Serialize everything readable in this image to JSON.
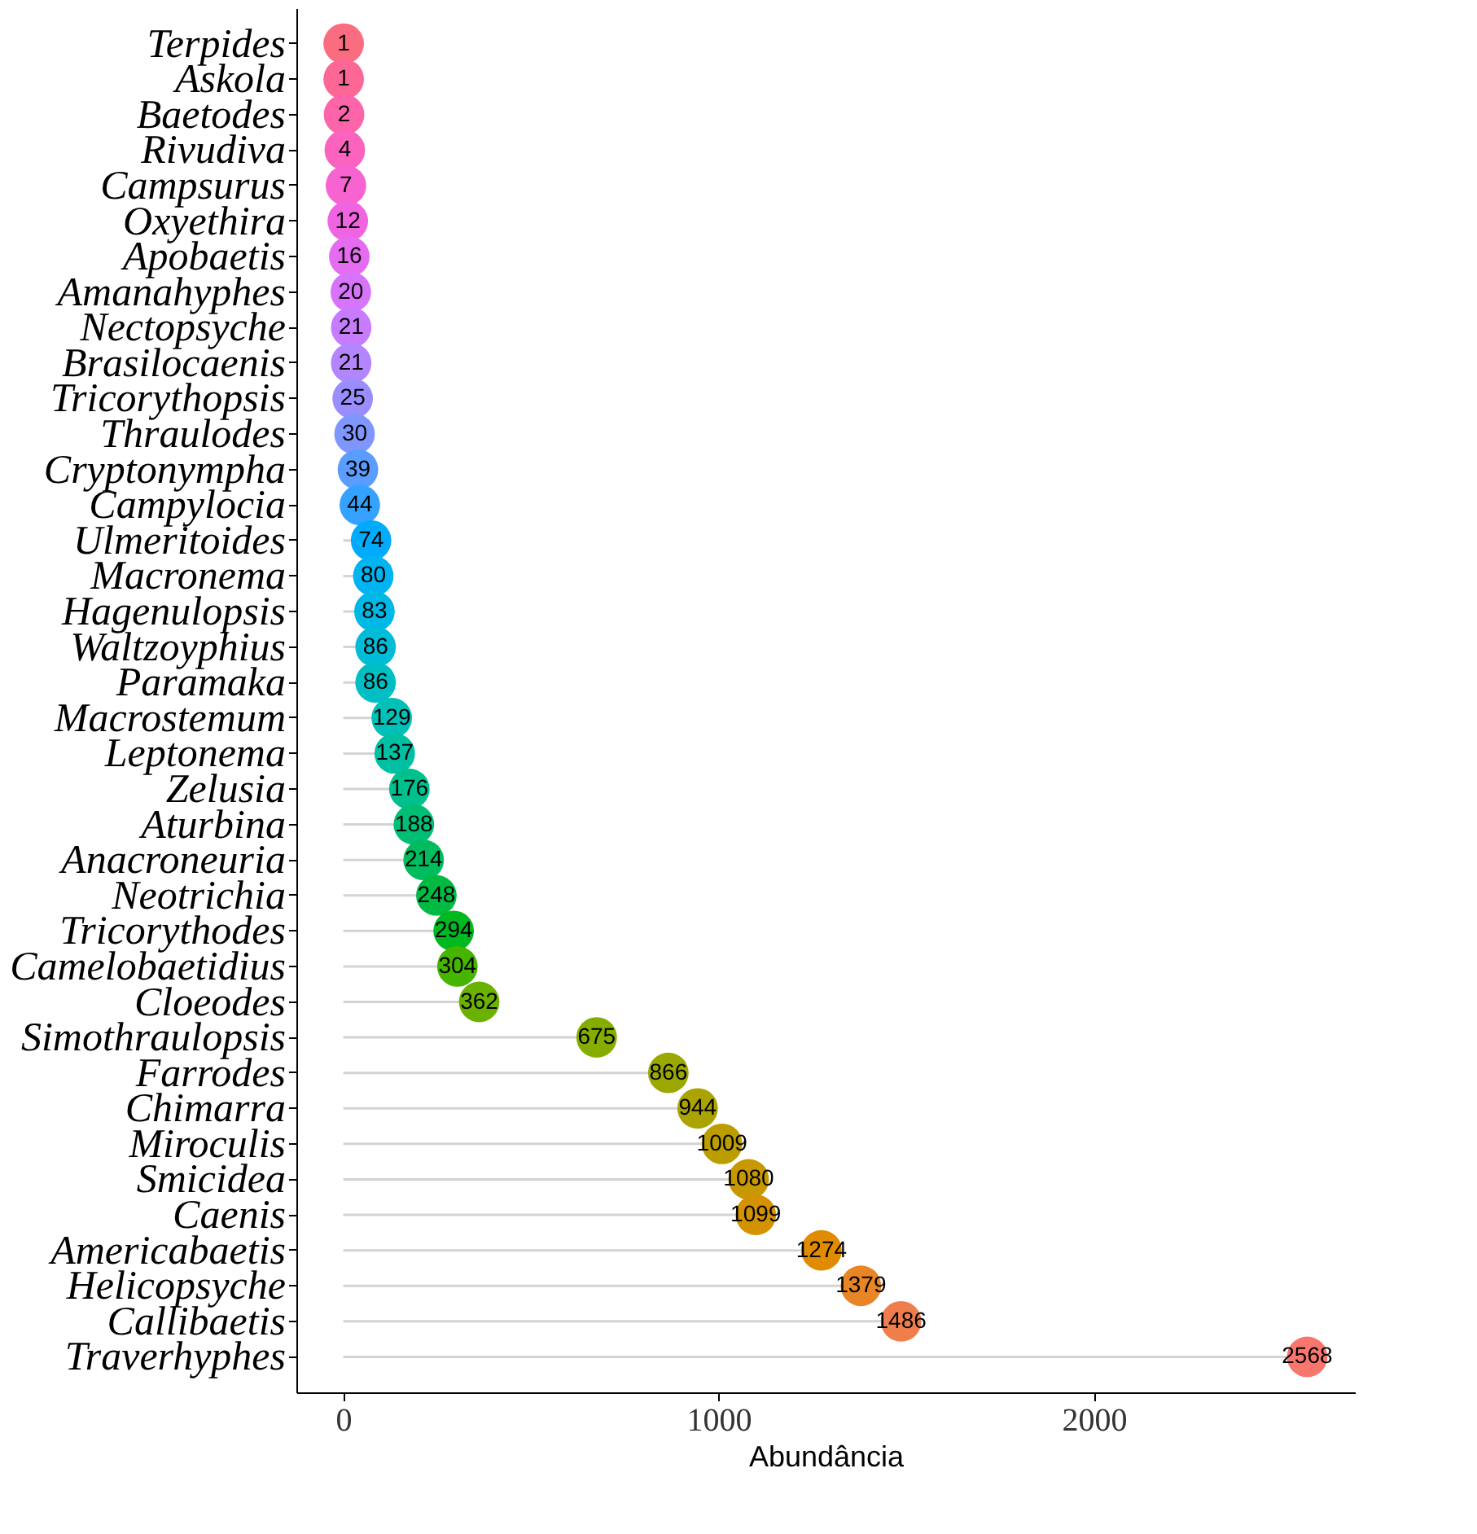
{
  "chart_data": {
    "type": "lollipop",
    "xlabel": "Abundância",
    "categories": [
      "Terpides",
      "Askola",
      "Baetodes",
      "Rivudiva",
      "Campsurus",
      "Oxyethira",
      "Apobaetis",
      "Amanahyphes",
      "Nectopsyche",
      "Brasilocaenis",
      "Tricorythopsis",
      "Thraulodes",
      "Cryptonympha",
      "Campylocia",
      "Ulmeritoides",
      "Macronema",
      "Hagenulopsis",
      "Waltzoyphius",
      "Paramaka",
      "Macrostemum",
      "Leptonema",
      "Zelusia",
      "Aturbina",
      "Anacroneuria",
      "Neotrichia",
      "Tricorythodes",
      "Camelobaetidius",
      "Cloeodes",
      "Simothraulopsis",
      "Farrodes",
      "Chimarra",
      "Miroculis",
      "Smicidea",
      "Caenis",
      "Americabaetis",
      "Helicopsyche",
      "Callibaetis",
      "Traverhyphes"
    ],
    "values": [
      1,
      1,
      2,
      4,
      7,
      12,
      16,
      20,
      21,
      21,
      25,
      30,
      39,
      44,
      74,
      80,
      83,
      86,
      86,
      129,
      137,
      176,
      188,
      214,
      248,
      294,
      304,
      362,
      675,
      866,
      944,
      1009,
      1080,
      1099,
      1274,
      1379,
      1486,
      2568
    ],
    "colors": [
      "#FA6C80",
      "#FC6795",
      "#FD64AA",
      "#FB63BE",
      "#F764D2",
      "#F064E2",
      "#E56BF0",
      "#D873FC",
      "#C77CFF",
      "#B385FF",
      "#9A8EFF",
      "#7F96FF",
      "#5B9DFF",
      "#35A2FF",
      "#00ABFD",
      "#00B3F1",
      "#00B8E5",
      "#00BCD6",
      "#00BFC4",
      "#00C0B7",
      "#00C0A3",
      "#00C08D",
      "#00BE76",
      "#00BC5E",
      "#00BA42",
      "#00B81F",
      "#45B500",
      "#6BB100",
      "#85AD00",
      "#9AA800",
      "#ABA300",
      "#BB9D00",
      "#C79800",
      "#D49200",
      "#E08B00",
      "#E88526",
      "#F07E4D",
      "#F8766D"
    ],
    "xlim": [
      -125,
      2695
    ],
    "xticks": [
      0,
      1000,
      2000
    ],
    "orientation": "horizontal",
    "data_labels": true,
    "grid": false
  }
}
